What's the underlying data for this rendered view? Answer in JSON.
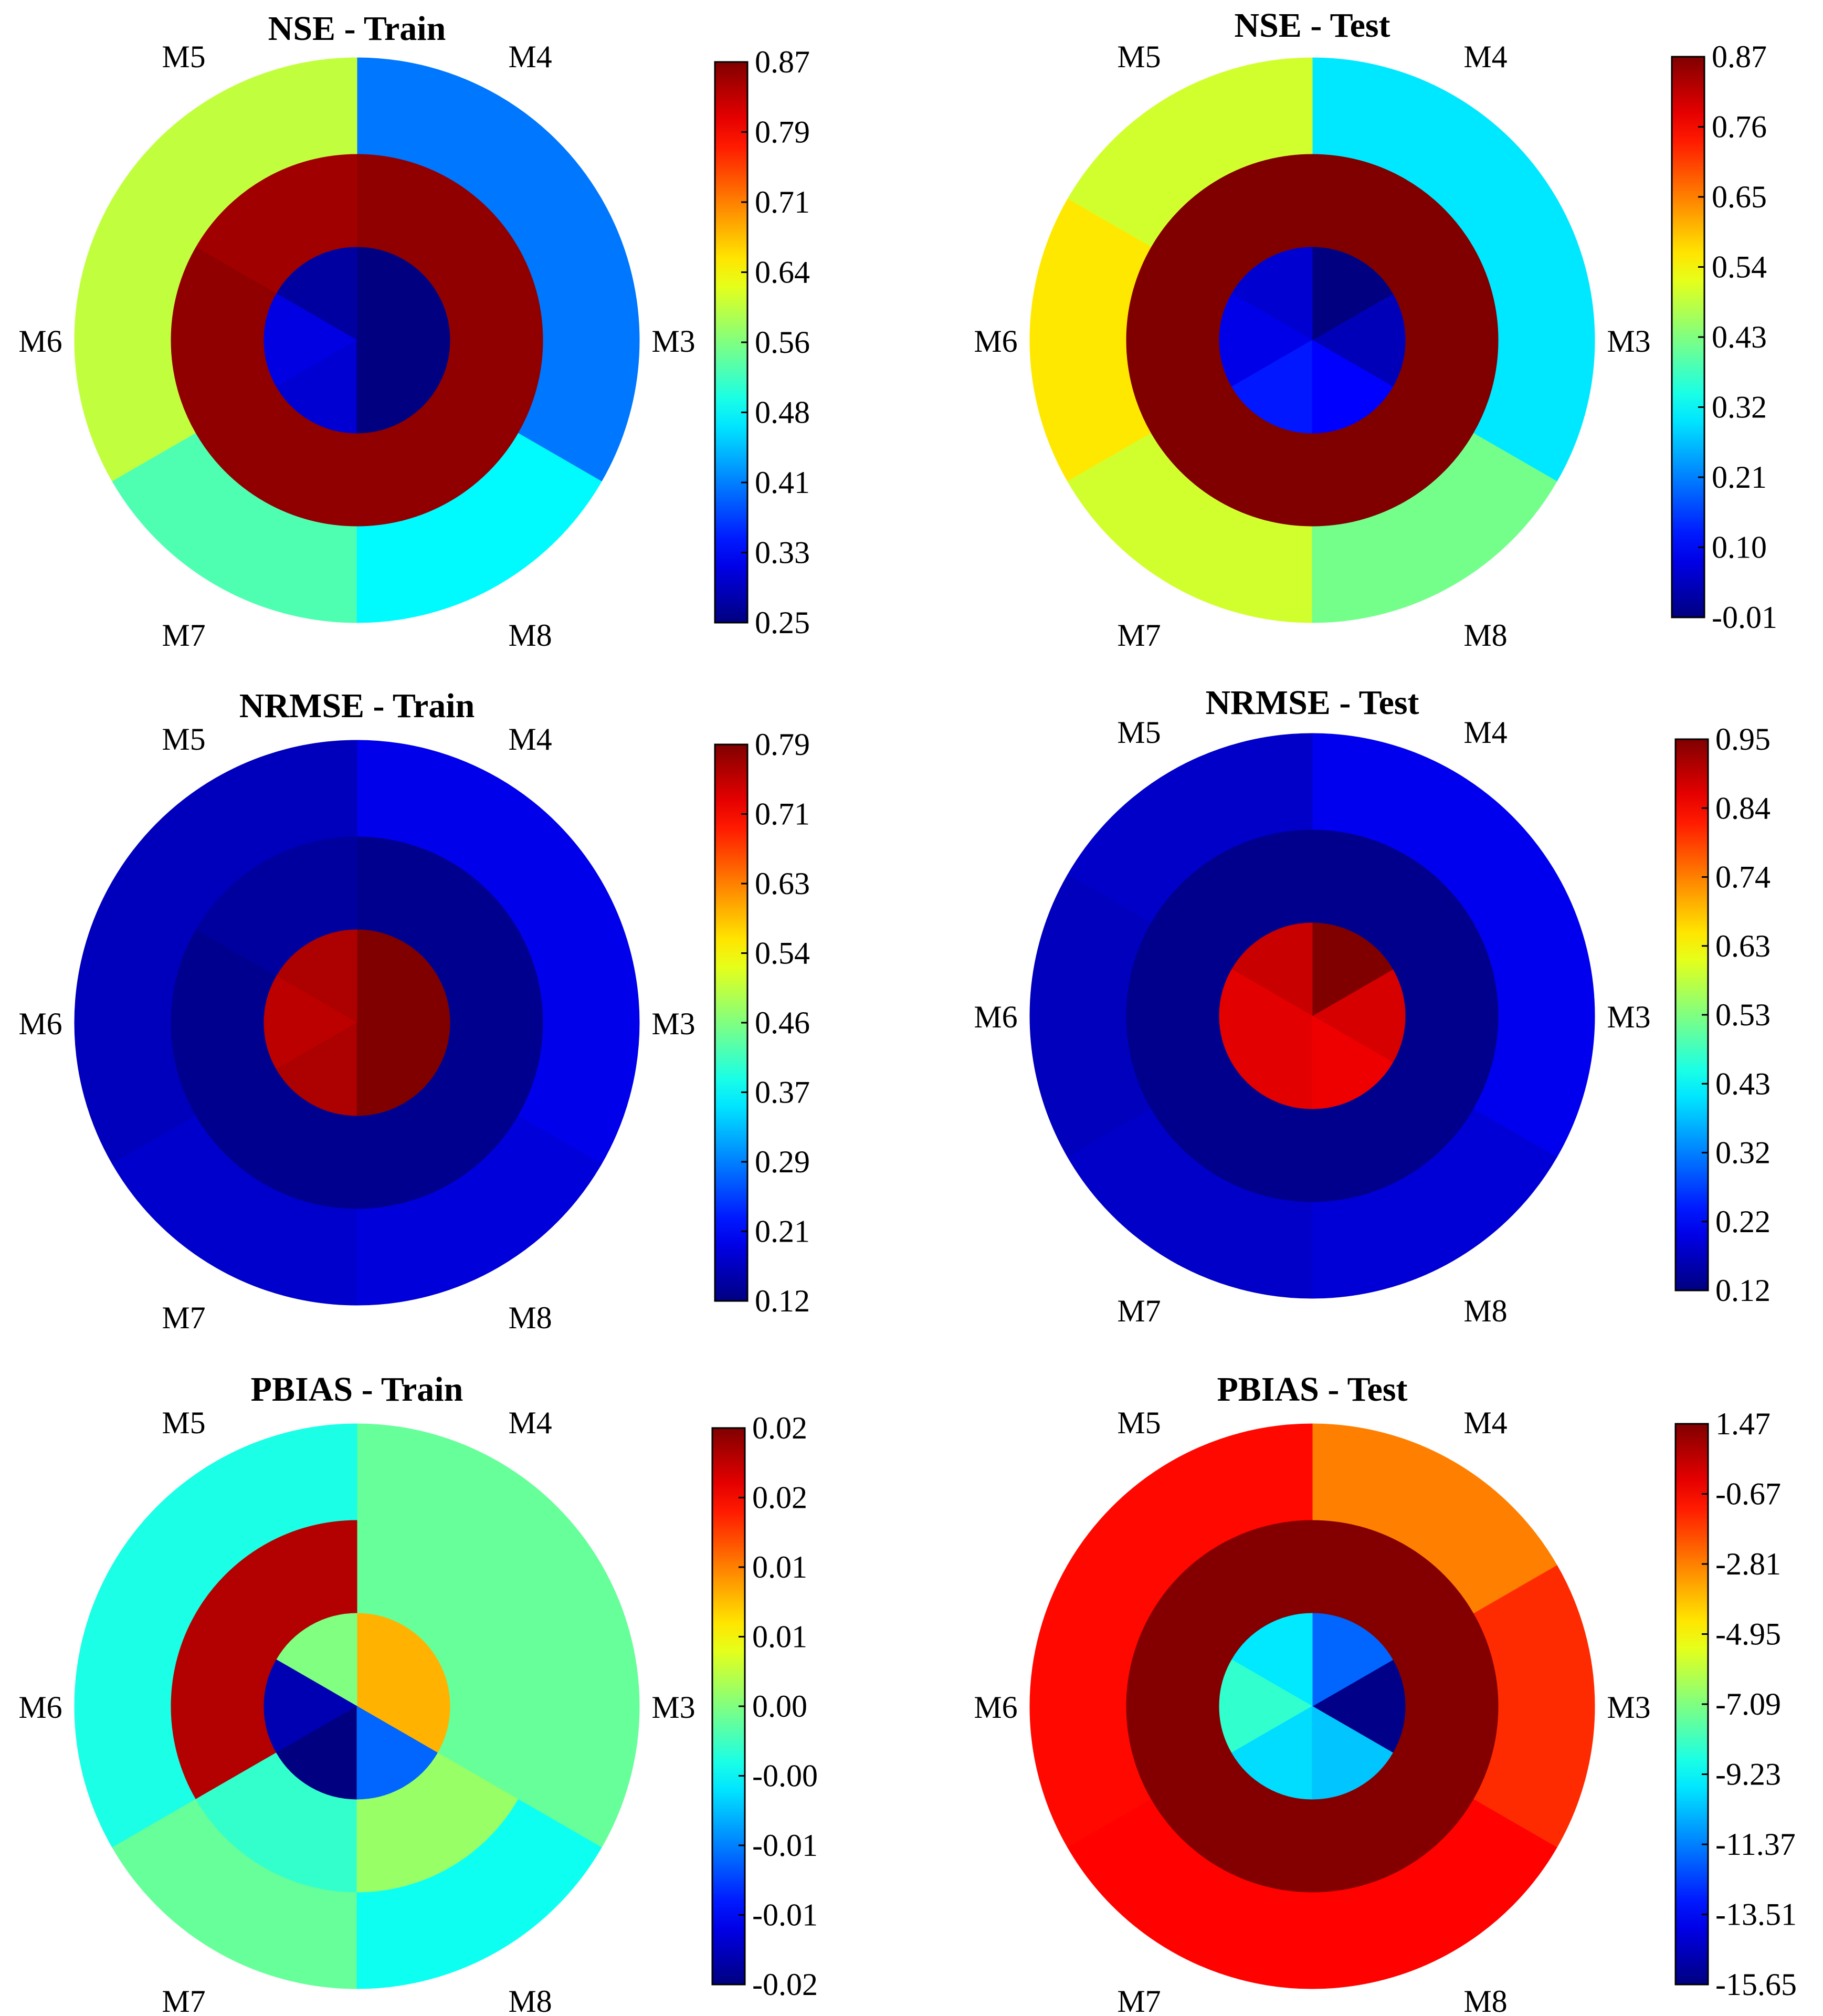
{
  "chart_data": [
    {
      "type": "polar-heatmap",
      "title": "NSE - Train",
      "sector_labels": [
        "M3",
        "M4",
        "M5",
        "M6",
        "M7",
        "M8"
      ],
      "rings": [
        "inner",
        "middle",
        "outer"
      ],
      "values": {
        "inner": [
          0.25,
          0.25,
          0.27,
          0.31,
          0.3,
          0.25
        ],
        "middle": [
          0.86,
          0.86,
          0.85,
          0.86,
          0.86,
          0.86
        ],
        "outer": [
          0.4,
          0.4,
          0.6,
          0.6,
          0.53,
          0.48
        ]
      },
      "colorbar": {
        "min": 0.25,
        "max": 0.87,
        "tick_labels": [
          "0.87",
          "0.79",
          "0.71",
          "0.64",
          "0.56",
          "0.48",
          "0.41",
          "0.33",
          "0.25"
        ]
      }
    },
    {
      "type": "polar-heatmap",
      "title": "NSE - Test",
      "sector_labels": [
        "M3",
        "M4",
        "M5",
        "M6",
        "M7",
        "M8"
      ],
      "rings": [
        "inner",
        "middle",
        "outer"
      ],
      "values": {
        "inner": [
          0.04,
          -0.01,
          0.06,
          0.08,
          0.12,
          0.1
        ],
        "middle": [
          0.87,
          0.87,
          0.87,
          0.87,
          0.87,
          0.87
        ],
        "outer": [
          0.3,
          0.3,
          0.5,
          0.56,
          0.5,
          0.42
        ]
      },
      "colorbar": {
        "min": -0.01,
        "max": 0.87,
        "tick_labels": [
          "0.87",
          "0.76",
          "0.65",
          "0.54",
          "0.43",
          "0.32",
          "0.21",
          "0.10",
          "-0.01"
        ]
      }
    },
    {
      "type": "polar-heatmap",
      "title": "NRMSE - Train",
      "sector_labels": [
        "M3",
        "M4",
        "M5",
        "M6",
        "M7",
        "M8"
      ],
      "rings": [
        "inner",
        "middle",
        "outer"
      ],
      "values": {
        "inner": [
          0.79,
          0.79,
          0.76,
          0.75,
          0.76,
          0.79
        ],
        "middle": [
          0.13,
          0.13,
          0.14,
          0.13,
          0.13,
          0.13
        ],
        "outer": [
          0.19,
          0.19,
          0.16,
          0.16,
          0.17,
          0.18
        ]
      },
      "colorbar": {
        "min": 0.12,
        "max": 0.79,
        "tick_labels": [
          "0.79",
          "0.71",
          "0.63",
          "0.54",
          "0.46",
          "0.37",
          "0.29",
          "0.21",
          "0.12"
        ]
      }
    },
    {
      "type": "polar-heatmap",
      "title": "NRMSE - Test",
      "sector_labels": [
        "M3",
        "M4",
        "M5",
        "M6",
        "M7",
        "M8"
      ],
      "rings": [
        "inner",
        "middle",
        "outer"
      ],
      "values": {
        "inner": [
          0.88,
          0.95,
          0.89,
          0.87,
          0.87,
          0.86
        ],
        "middle": [
          0.13,
          0.13,
          0.13,
          0.13,
          0.13,
          0.13
        ],
        "outer": [
          0.21,
          0.21,
          0.18,
          0.17,
          0.18,
          0.19
        ]
      },
      "colorbar": {
        "min": 0.12,
        "max": 0.95,
        "tick_labels": [
          "0.95",
          "0.84",
          "0.74",
          "0.63",
          "0.53",
          "0.43",
          "0.32",
          "0.22",
          "0.12"
        ]
      }
    },
    {
      "type": "polar-heatmap",
      "title": "PBIAS - Train",
      "sector_labels": [
        "M3",
        "M4",
        "M5",
        "M6",
        "M7",
        "M8"
      ],
      "rings": [
        "inner",
        "middle",
        "outer"
      ],
      "values": {
        "inner": [
          0.008,
          0.008,
          0.0,
          -0.018,
          -0.02,
          -0.011
        ],
        "middle": [
          -0.001,
          -0.001,
          0.018,
          0.018,
          -0.003,
          0.001
        ],
        "outer": [
          -0.001,
          -0.001,
          -0.004,
          -0.004,
          -0.001,
          -0.0045
        ]
      },
      "colorbar": {
        "min": -0.02,
        "max": 0.02,
        "tick_labels": [
          "0.02",
          "0.02",
          "0.01",
          "0.01",
          "0.00",
          "-0.00",
          "-0.01",
          "-0.01",
          "-0.02"
        ]
      }
    },
    {
      "type": "polar-heatmap",
      "title": "PBIAS - Test",
      "sector_labels": [
        "M3",
        "M4",
        "M5",
        "M6",
        "M7",
        "M8"
      ],
      "rings": [
        "inner",
        "middle",
        "outer"
      ],
      "values": {
        "inner": [
          -15.5,
          -11.8,
          -9.6,
          -8.4,
          -9.8,
          -10.2
        ],
        "middle": [
          1.4,
          1.4,
          1.4,
          1.4,
          1.4,
          1.4
        ],
        "outer": [
          -1.4,
          -2.8,
          -0.8,
          -0.8,
          -0.7,
          -0.7
        ]
      },
      "colorbar": {
        "min": -15.65,
        "max": 1.47,
        "tick_labels": [
          "1.47",
          "-0.67",
          "-2.81",
          "-4.95",
          "-7.09",
          "-9.23",
          "-11.37",
          "-13.51",
          "-15.65"
        ]
      }
    }
  ]
}
